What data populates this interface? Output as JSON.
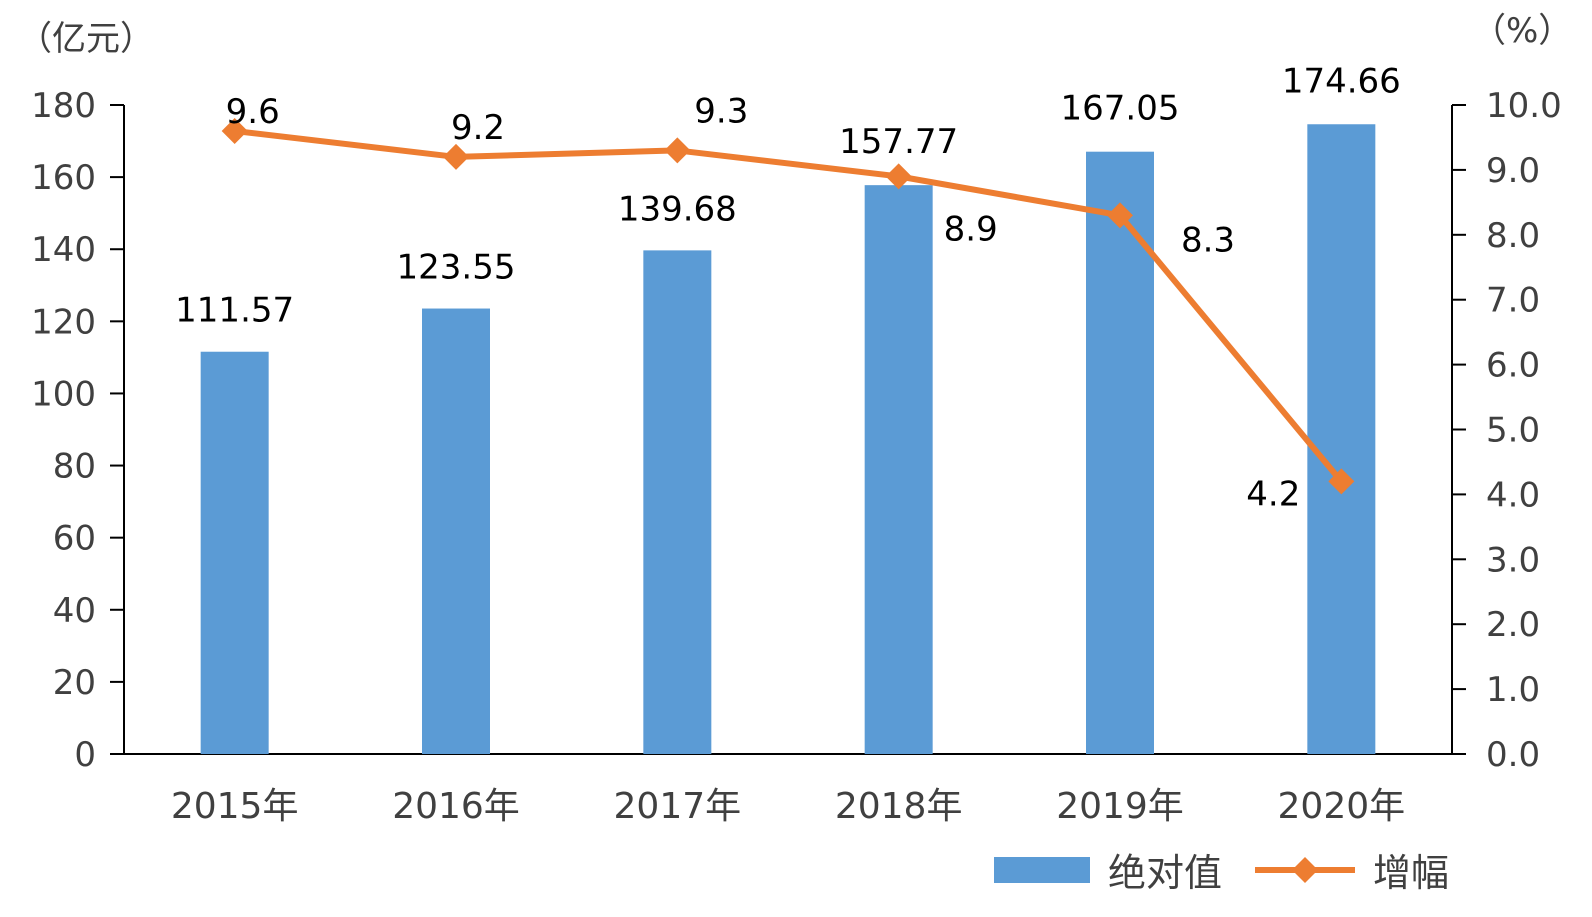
{
  "chart_data": {
    "type": "bar+line",
    "title": "",
    "categories": [
      "2015年",
      "2016年",
      "2017年",
      "2018年",
      "2019年",
      "2020年"
    ],
    "left_axis": {
      "unit_label": "（亿元）",
      "ylim": [
        0,
        180
      ],
      "ticks": [
        0,
        20,
        40,
        60,
        80,
        100,
        120,
        140,
        160,
        180
      ]
    },
    "right_axis": {
      "unit_label": "（%）",
      "ylim": [
        0,
        10
      ],
      "ticks": [
        "0.0",
        "1.0",
        "2.0",
        "3.0",
        "4.0",
        "5.0",
        "6.0",
        "7.0",
        "8.0",
        "9.0",
        "10.0"
      ]
    },
    "series": [
      {
        "name": "绝对值",
        "type": "bar",
        "axis": "left",
        "color": "#5B9BD5",
        "values": [
          111.57,
          123.55,
          139.68,
          157.77,
          167.05,
          174.66
        ],
        "labels": [
          "111.57",
          "123.55",
          "139.68",
          "157.77",
          "167.05",
          "174.66"
        ]
      },
      {
        "name": "增幅",
        "type": "line",
        "axis": "right",
        "color": "#ED7D31",
        "marker": "diamond",
        "values": [
          9.6,
          9.2,
          9.3,
          8.9,
          8.3,
          4.2
        ],
        "labels": [
          "9.6",
          "9.2",
          "9.3",
          "8.9",
          "8.3",
          "4.2"
        ]
      }
    ],
    "grid": false,
    "legend": "bottom-right"
  }
}
